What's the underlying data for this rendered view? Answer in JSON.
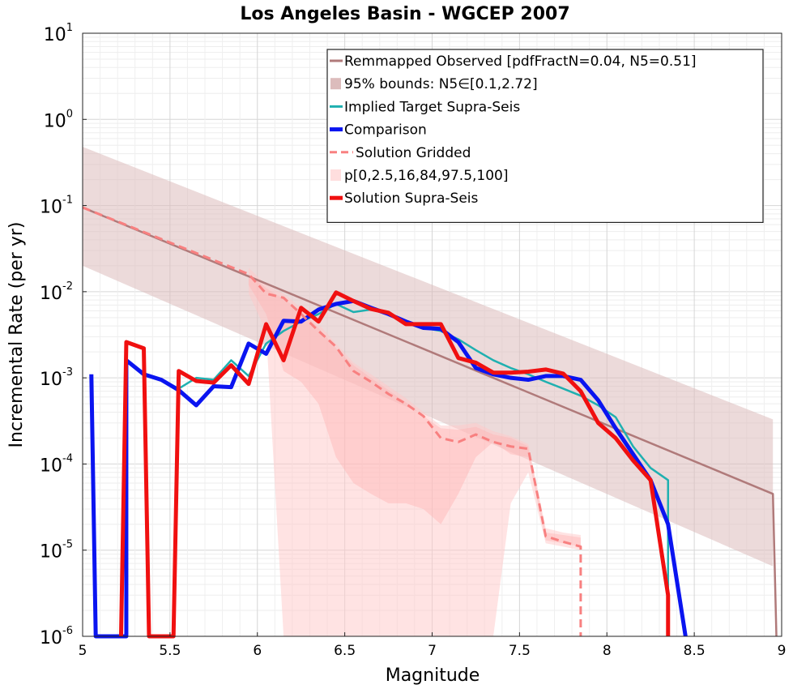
{
  "chart_data": {
    "type": "line",
    "title": "Los Angeles Basin - WGCEP 2007",
    "xlabel": "Magnitude",
    "ylabel": "Incremental Rate (per yr)",
    "xlim": [
      5,
      9
    ],
    "ylim": [
      1e-06,
      10
    ],
    "yscale": "log",
    "grid": true,
    "legend_position": "top-right",
    "x_ticks": [
      "5",
      "5.5",
      "6",
      "6.5",
      "7",
      "7.5",
      "8",
      "8.5",
      "9"
    ],
    "y_ticks": [
      {
        "base": "10",
        "exp": "-6"
      },
      {
        "base": "10",
        "exp": "-5"
      },
      {
        "base": "10",
        "exp": "-4"
      },
      {
        "base": "10",
        "exp": "-3"
      },
      {
        "base": "10",
        "exp": "-2"
      },
      {
        "base": "10",
        "exp": "-1"
      },
      {
        "base": "10",
        "exp": "0"
      },
      {
        "base": "10",
        "exp": "1"
      }
    ],
    "bands": [
      {
        "name": "95% bounds: N5∈[0.1,2.72]",
        "color": "#dcbcbc",
        "opacity": 0.55,
        "points": [
          [
            5.0,
            0.02,
            0.48
          ],
          [
            8.95,
            6.5e-06,
            0.00033
          ],
          [
            8.95,
            1e-06,
            0.00033
          ]
        ]
      },
      {
        "name": "p[0,2.5,16,84,97.5,100]",
        "color": "#ffc8c8",
        "opacity": 0.5,
        "points": [
          [
            5.95,
            0.0095,
            0.019
          ],
          [
            6.05,
            0.0035,
            0.012
          ],
          [
            6.15,
            1e-06,
            0.0095
          ],
          [
            6.25,
            1e-06,
            0.0065
          ],
          [
            6.35,
            1e-06,
            0.0042
          ],
          [
            6.45,
            1e-06,
            0.0025
          ],
          [
            6.55,
            1e-06,
            0.0015
          ],
          [
            6.65,
            1e-06,
            0.0011
          ],
          [
            6.75,
            1e-06,
            0.0008
          ],
          [
            6.85,
            1e-06,
            0.00058
          ],
          [
            6.95,
            1e-06,
            0.0004
          ],
          [
            7.05,
            1e-06,
            0.00028
          ],
          [
            7.15,
            1e-06,
            0.00028
          ],
          [
            7.25,
            1e-06,
            0.0003
          ],
          [
            7.35,
            1e-06,
            0.00024
          ],
          [
            7.45,
            3.5e-05,
            0.00021
          ],
          [
            7.55,
            8e-05,
            0.00017
          ],
          [
            7.65,
            1.2e-05,
            1.8e-05
          ],
          [
            7.75,
            1.1e-05,
            1.6e-05
          ],
          [
            7.85,
            1e-05,
            1.5e-05
          ]
        ]
      },
      {
        "name": "p-inner",
        "color": "#ffb3b3",
        "opacity": 0.45,
        "points": [
          [
            5.95,
            0.012,
            0.016
          ],
          [
            6.05,
            0.0055,
            0.011
          ],
          [
            6.15,
            0.0012,
            0.0082
          ],
          [
            6.25,
            0.0009,
            0.006
          ],
          [
            6.35,
            0.0005,
            0.0038
          ],
          [
            6.45,
            0.00012,
            0.0022
          ],
          [
            6.55,
            6e-05,
            0.0014
          ],
          [
            6.65,
            4.5e-05,
            0.001
          ],
          [
            6.75,
            3.5e-05,
            0.00072
          ],
          [
            6.85,
            3.5e-05,
            0.00052
          ],
          [
            6.95,
            3e-05,
            0.00036
          ],
          [
            7.05,
            2e-05,
            0.00026
          ],
          [
            7.15,
            4.5e-05,
            0.00025
          ],
          [
            7.25,
            0.00012,
            0.00027
          ],
          [
            7.35,
            0.00018,
            0.00022
          ],
          [
            7.45,
            0.00013,
            0.0002
          ],
          [
            7.55,
            0.00012,
            0.00016
          ],
          [
            7.65,
            1.3e-05,
            1.6e-05
          ],
          [
            7.75,
            1.2e-05,
            1.5e-05
          ],
          [
            7.85,
            1.1e-05,
            1.4e-05
          ]
        ]
      }
    ],
    "series": [
      {
        "name": "Remmapped Observed [pdfFractN=0.04, N5=0.51]",
        "color": "#b07a7a",
        "width": 2.5,
        "dash": "",
        "points": [
          [
            5.0,
            0.095
          ],
          [
            8.95,
            4.5e-05
          ],
          [
            8.97,
            1e-06
          ]
        ]
      },
      {
        "name": "Implied Target Supra-Seis",
        "color": "#1fb0b0",
        "width": 2.5,
        "dash": "",
        "points": [
          [
            5.25,
            0.00165
          ],
          [
            5.35,
            0.0011
          ],
          [
            5.45,
            0.00095
          ],
          [
            5.55,
            0.00075
          ],
          [
            5.65,
            0.001
          ],
          [
            5.75,
            0.00095
          ],
          [
            5.85,
            0.0016
          ],
          [
            5.95,
            0.00105
          ],
          [
            6.05,
            0.0025
          ],
          [
            6.15,
            0.0035
          ],
          [
            6.25,
            0.0045
          ],
          [
            6.35,
            0.0055
          ],
          [
            6.45,
            0.0072
          ],
          [
            6.55,
            0.0058
          ],
          [
            6.65,
            0.0062
          ],
          [
            6.75,
            0.0055
          ],
          [
            6.85,
            0.0045
          ],
          [
            6.95,
            0.0038
          ],
          [
            7.05,
            0.0035
          ],
          [
            7.15,
            0.0028
          ],
          [
            7.25,
            0.0021
          ],
          [
            7.35,
            0.0016
          ],
          [
            7.45,
            0.0013
          ],
          [
            7.55,
            0.0011
          ],
          [
            7.65,
            0.0009
          ],
          [
            7.75,
            0.00075
          ],
          [
            7.85,
            0.00062
          ],
          [
            7.95,
            0.00048
          ],
          [
            8.05,
            0.00035
          ],
          [
            8.15,
            0.00016
          ],
          [
            8.25,
            9e-05
          ],
          [
            8.35,
            6.5e-05
          ],
          [
            8.35,
            1e-06
          ]
        ]
      },
      {
        "name": "Comparison",
        "color": "#0a14f0",
        "width": 5,
        "dash": "",
        "points": [
          [
            5.05,
            0.0011
          ],
          [
            5.075,
            1e-06
          ],
          [
            5.25,
            1e-06
          ],
          [
            5.25,
            0.0016
          ],
          [
            5.35,
            0.0011
          ],
          [
            5.45,
            0.00095
          ],
          [
            5.55,
            0.00072
          ],
          [
            5.65,
            0.00048
          ],
          [
            5.75,
            0.0008
          ],
          [
            5.85,
            0.00078
          ],
          [
            5.95,
            0.0025
          ],
          [
            6.05,
            0.0019
          ],
          [
            6.15,
            0.0046
          ],
          [
            6.25,
            0.0045
          ],
          [
            6.35,
            0.0062
          ],
          [
            6.45,
            0.0072
          ],
          [
            6.55,
            0.0078
          ],
          [
            6.65,
            0.0065
          ],
          [
            6.75,
            0.0055
          ],
          [
            6.85,
            0.0045
          ],
          [
            6.95,
            0.0038
          ],
          [
            7.05,
            0.0037
          ],
          [
            7.15,
            0.0026
          ],
          [
            7.25,
            0.0013
          ],
          [
            7.35,
            0.0011
          ],
          [
            7.45,
            0.001
          ],
          [
            7.55,
            0.00095
          ],
          [
            7.65,
            0.00105
          ],
          [
            7.75,
            0.00105
          ],
          [
            7.85,
            0.00095
          ],
          [
            7.95,
            0.00055
          ],
          [
            8.05,
            0.00026
          ],
          [
            8.15,
            0.00013
          ],
          [
            8.25,
            6.5e-05
          ],
          [
            8.35,
            2e-05
          ],
          [
            8.45,
            1e-06
          ]
        ]
      },
      {
        "name": "Solution Gridded",
        "color": "#f88080",
        "width": 3,
        "dash": "10,6",
        "points": [
          [
            5.0,
            0.095
          ],
          [
            5.95,
            0.016
          ],
          [
            6.05,
            0.0095
          ],
          [
            6.15,
            0.0085
          ],
          [
            6.25,
            0.0055
          ],
          [
            6.35,
            0.0035
          ],
          [
            6.45,
            0.0023
          ],
          [
            6.55,
            0.0012
          ],
          [
            6.65,
            0.0009
          ],
          [
            6.75,
            0.00065
          ],
          [
            6.85,
            0.0005
          ],
          [
            6.95,
            0.00036
          ],
          [
            7.05,
            0.0002
          ],
          [
            7.15,
            0.00018
          ],
          [
            7.25,
            0.00022
          ],
          [
            7.35,
            0.00018
          ],
          [
            7.45,
            0.00016
          ],
          [
            7.55,
            0.00015
          ],
          [
            7.65,
            1.45e-05
          ],
          [
            7.75,
            1.25e-05
          ],
          [
            7.85,
            1.1e-05
          ],
          [
            7.85,
            1e-06
          ]
        ]
      },
      {
        "name": "Solution Supra-Seis",
        "color": "#f01010",
        "width": 5,
        "dash": "",
        "points": [
          [
            5.22,
            1e-06
          ],
          [
            5.25,
            0.0026
          ],
          [
            5.35,
            0.0022
          ],
          [
            5.38,
            1e-06
          ],
          [
            5.52,
            1e-06
          ],
          [
            5.55,
            0.0012
          ],
          [
            5.65,
            0.00092
          ],
          [
            5.75,
            0.00088
          ],
          [
            5.85,
            0.0014
          ],
          [
            5.95,
            0.00085
          ],
          [
            6.05,
            0.0042
          ],
          [
            6.15,
            0.0016
          ],
          [
            6.25,
            0.0065
          ],
          [
            6.35,
            0.0045
          ],
          [
            6.45,
            0.0098
          ],
          [
            6.55,
            0.0078
          ],
          [
            6.65,
            0.0063
          ],
          [
            6.75,
            0.0057
          ],
          [
            6.85,
            0.0042
          ],
          [
            6.95,
            0.0042
          ],
          [
            7.05,
            0.0042
          ],
          [
            7.15,
            0.0017
          ],
          [
            7.25,
            0.0015
          ],
          [
            7.35,
            0.00115
          ],
          [
            7.45,
            0.00115
          ],
          [
            7.55,
            0.00118
          ],
          [
            7.65,
            0.00125
          ],
          [
            7.75,
            0.00112
          ],
          [
            7.85,
            0.0007
          ],
          [
            7.95,
            0.0003
          ],
          [
            8.05,
            0.0002
          ],
          [
            8.15,
            0.00011
          ],
          [
            8.25,
            6.5e-05
          ],
          [
            8.35,
            3e-06
          ],
          [
            8.35,
            1e-06
          ]
        ]
      }
    ],
    "legend": [
      {
        "label": "Remmapped Observed [pdfFractN=0.04, N5=0.51]",
        "swatch": "line",
        "color": "#b07a7a",
        "dash": ""
      },
      {
        "label": "95% bounds: N5∈[0.1,2.72]",
        "swatch": "patch",
        "color": "#dcbcbc",
        "dash": ""
      },
      {
        "label": "Implied Target Supra-Seis",
        "swatch": "line",
        "color": "#1fb0b0",
        "dash": ""
      },
      {
        "label": "Comparison",
        "swatch": "thick",
        "color": "#0a14f0",
        "dash": ""
      },
      {
        "label": "Solution Gridded",
        "swatch": "line",
        "color": "#f88080",
        "dash": "10,6"
      },
      {
        "label": "p[0,2.5,16,84,97.5,100]",
        "swatch": "patch",
        "color": "#ffdede",
        "dash": ""
      },
      {
        "label": "Solution Supra-Seis",
        "swatch": "thick",
        "color": "#f01010",
        "dash": ""
      }
    ]
  }
}
